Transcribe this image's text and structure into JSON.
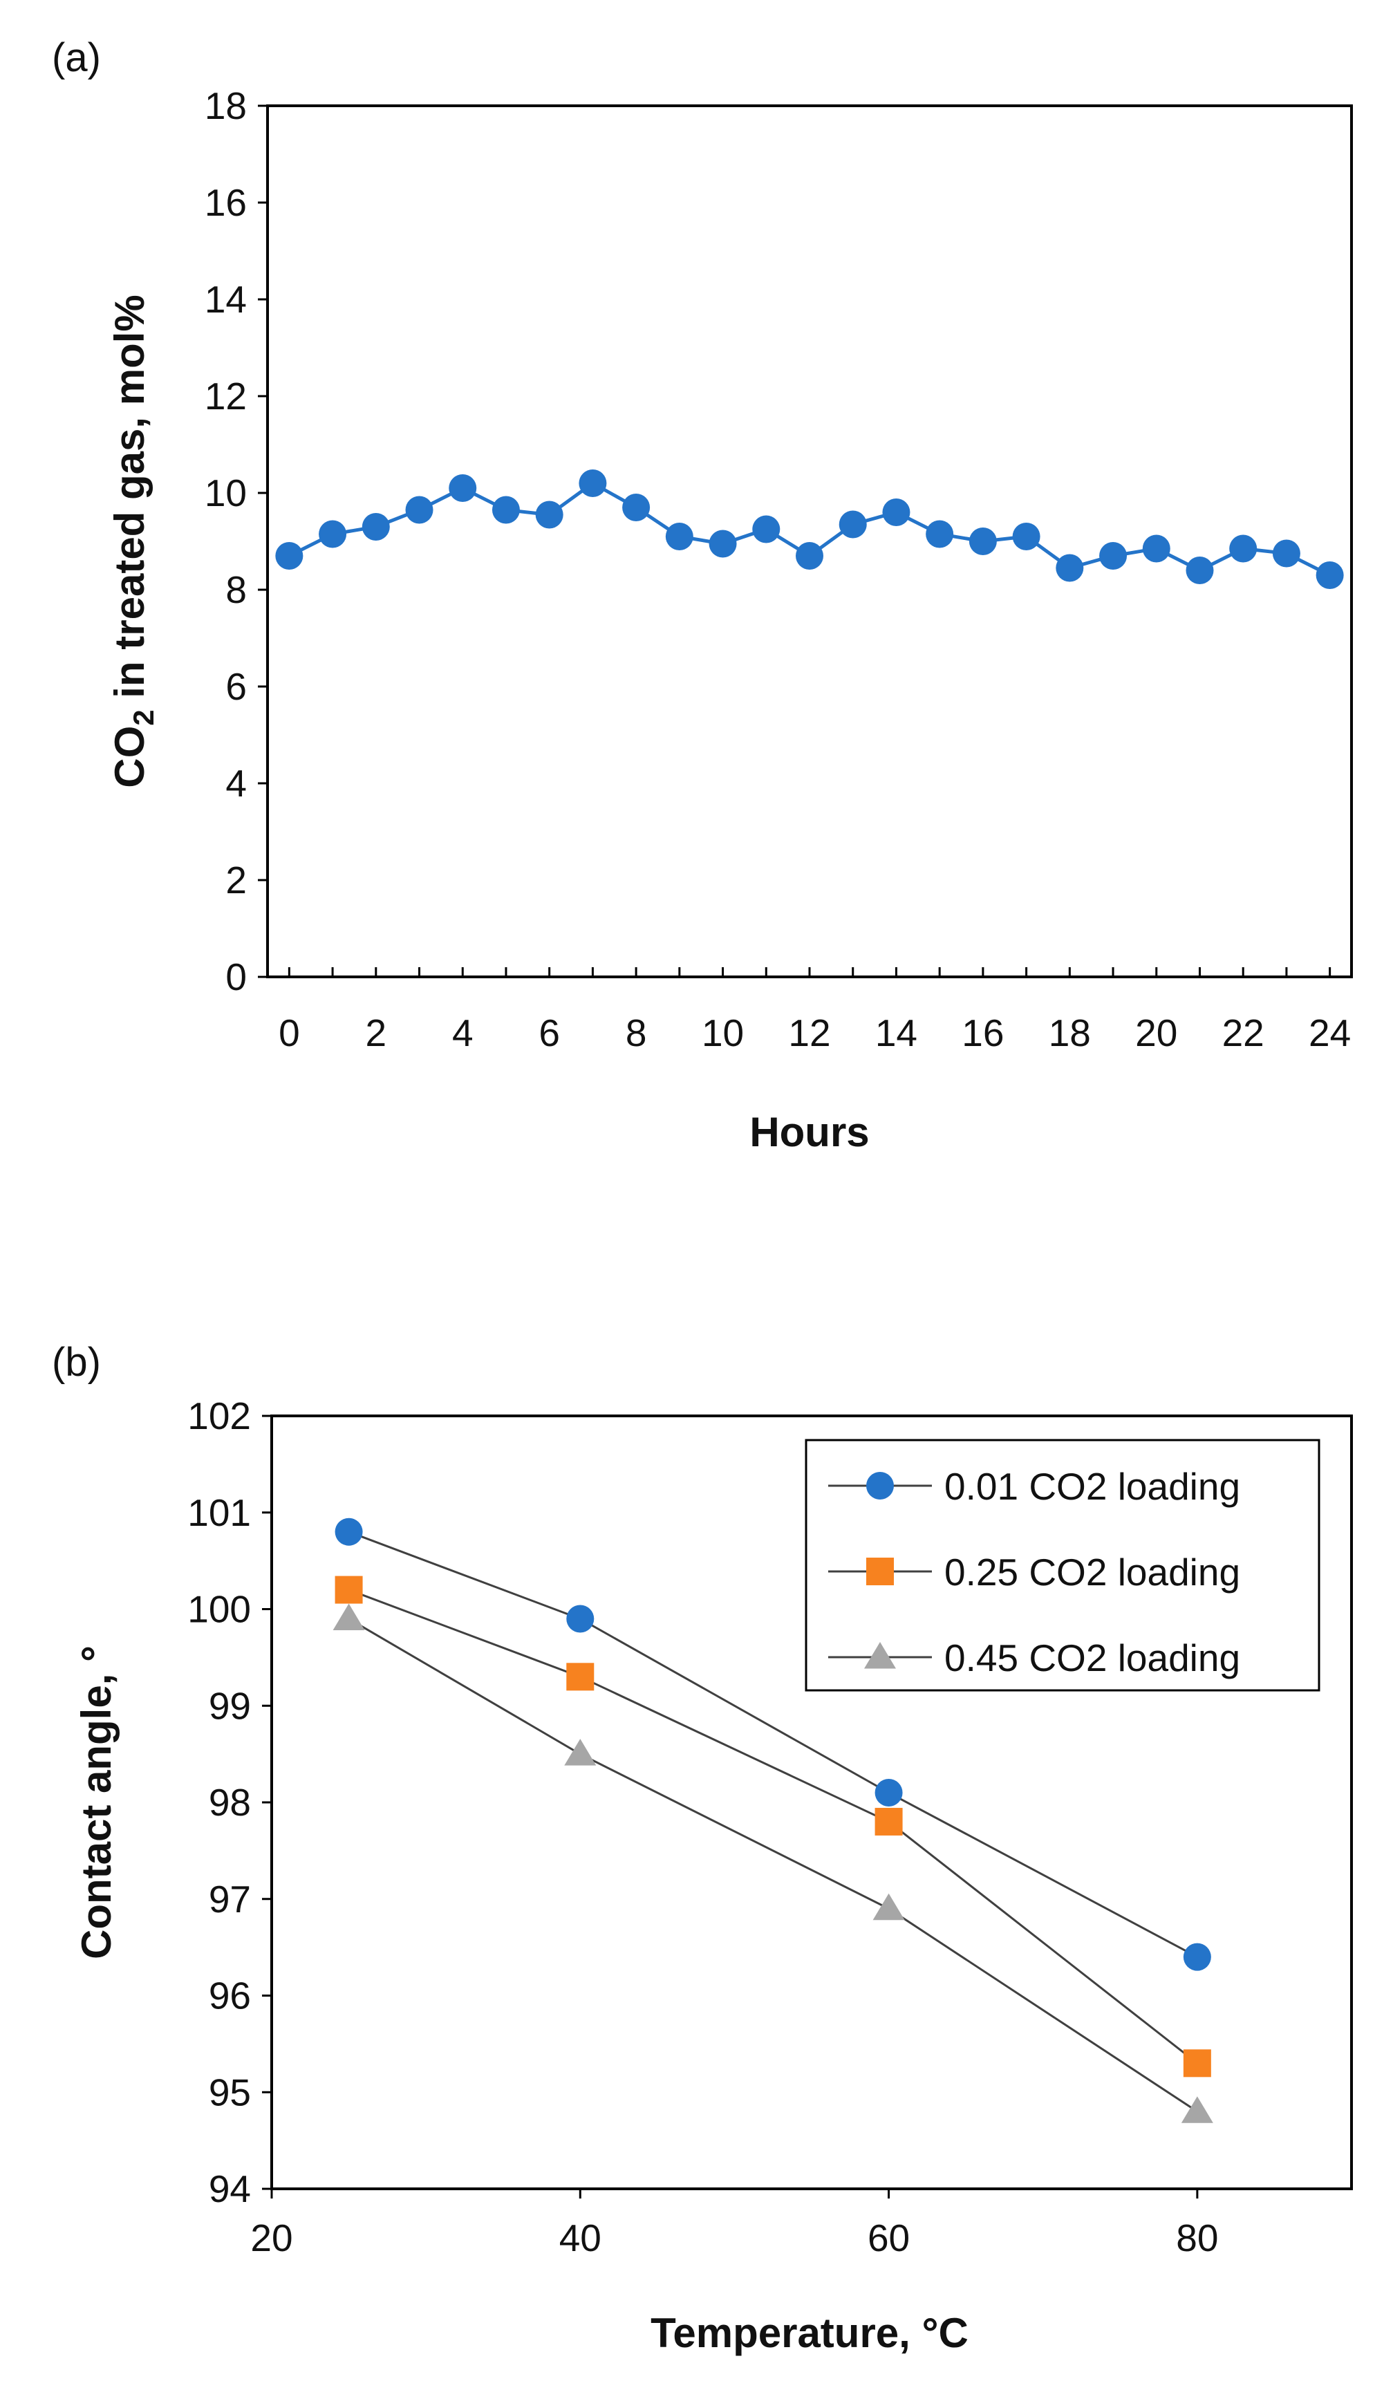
{
  "chart_data": [
    {
      "type": "line",
      "panel_label": "(a)",
      "xlabel": "Hours",
      "ylabel_main": "CO",
      "ylabel_sub": "2",
      "ylabel_rest": " in treated gas, mol%",
      "xlim": [
        -0.5,
        24.5
      ],
      "ylim": [
        0,
        18
      ],
      "xticks": [
        0,
        2,
        4,
        6,
        8,
        10,
        12,
        14,
        16,
        18,
        20,
        22,
        24
      ],
      "yticks": [
        0,
        2,
        4,
        6,
        8,
        10,
        12,
        14,
        16,
        18
      ],
      "grid": false,
      "series": [
        {
          "name": "CO2 in treated gas",
          "color": "#2474c9",
          "marker": "circle",
          "x": [
            0,
            1,
            2,
            3,
            4,
            5,
            6,
            7,
            8,
            9,
            10,
            11,
            12,
            13,
            14,
            15,
            16,
            17,
            18,
            19,
            20,
            21,
            22,
            23,
            24
          ],
          "values": [
            8.7,
            9.15,
            9.3,
            9.65,
            10.1,
            9.65,
            9.55,
            10.2,
            9.7,
            9.1,
            8.95,
            9.25,
            8.7,
            9.35,
            9.6,
            9.15,
            9.0,
            9.1,
            8.45,
            8.7,
            8.85,
            8.4,
            8.85,
            8.75,
            8.3
          ]
        }
      ]
    },
    {
      "type": "line",
      "panel_label": "(b)",
      "xlabel": "Temperature, °C",
      "ylabel": "Contact angle, °",
      "xlim": [
        20,
        90
      ],
      "ylim": [
        94,
        102
      ],
      "xticks": [
        20,
        40,
        60,
        80
      ],
      "yticks": [
        94,
        95,
        96,
        97,
        98,
        99,
        100,
        101,
        102
      ],
      "grid": false,
      "legend_position": "top-right",
      "series": [
        {
          "name": "0.01 CO2 loading",
          "color": "#2474c9",
          "marker": "circle",
          "x": [
            25,
            40,
            60,
            80
          ],
          "values": [
            100.8,
            99.9,
            98.1,
            96.4
          ]
        },
        {
          "name": "0.25 CO2 loading",
          "color": "#f7821f",
          "marker": "square",
          "x": [
            25,
            40,
            60,
            80
          ],
          "values": [
            100.2,
            99.3,
            97.8,
            95.3
          ]
        },
        {
          "name": "0.45 CO2 loading",
          "color": "#a6a6a6",
          "marker": "triangle",
          "x": [
            25,
            40,
            60,
            80
          ],
          "values": [
            99.9,
            98.5,
            96.9,
            94.8
          ]
        }
      ]
    }
  ]
}
